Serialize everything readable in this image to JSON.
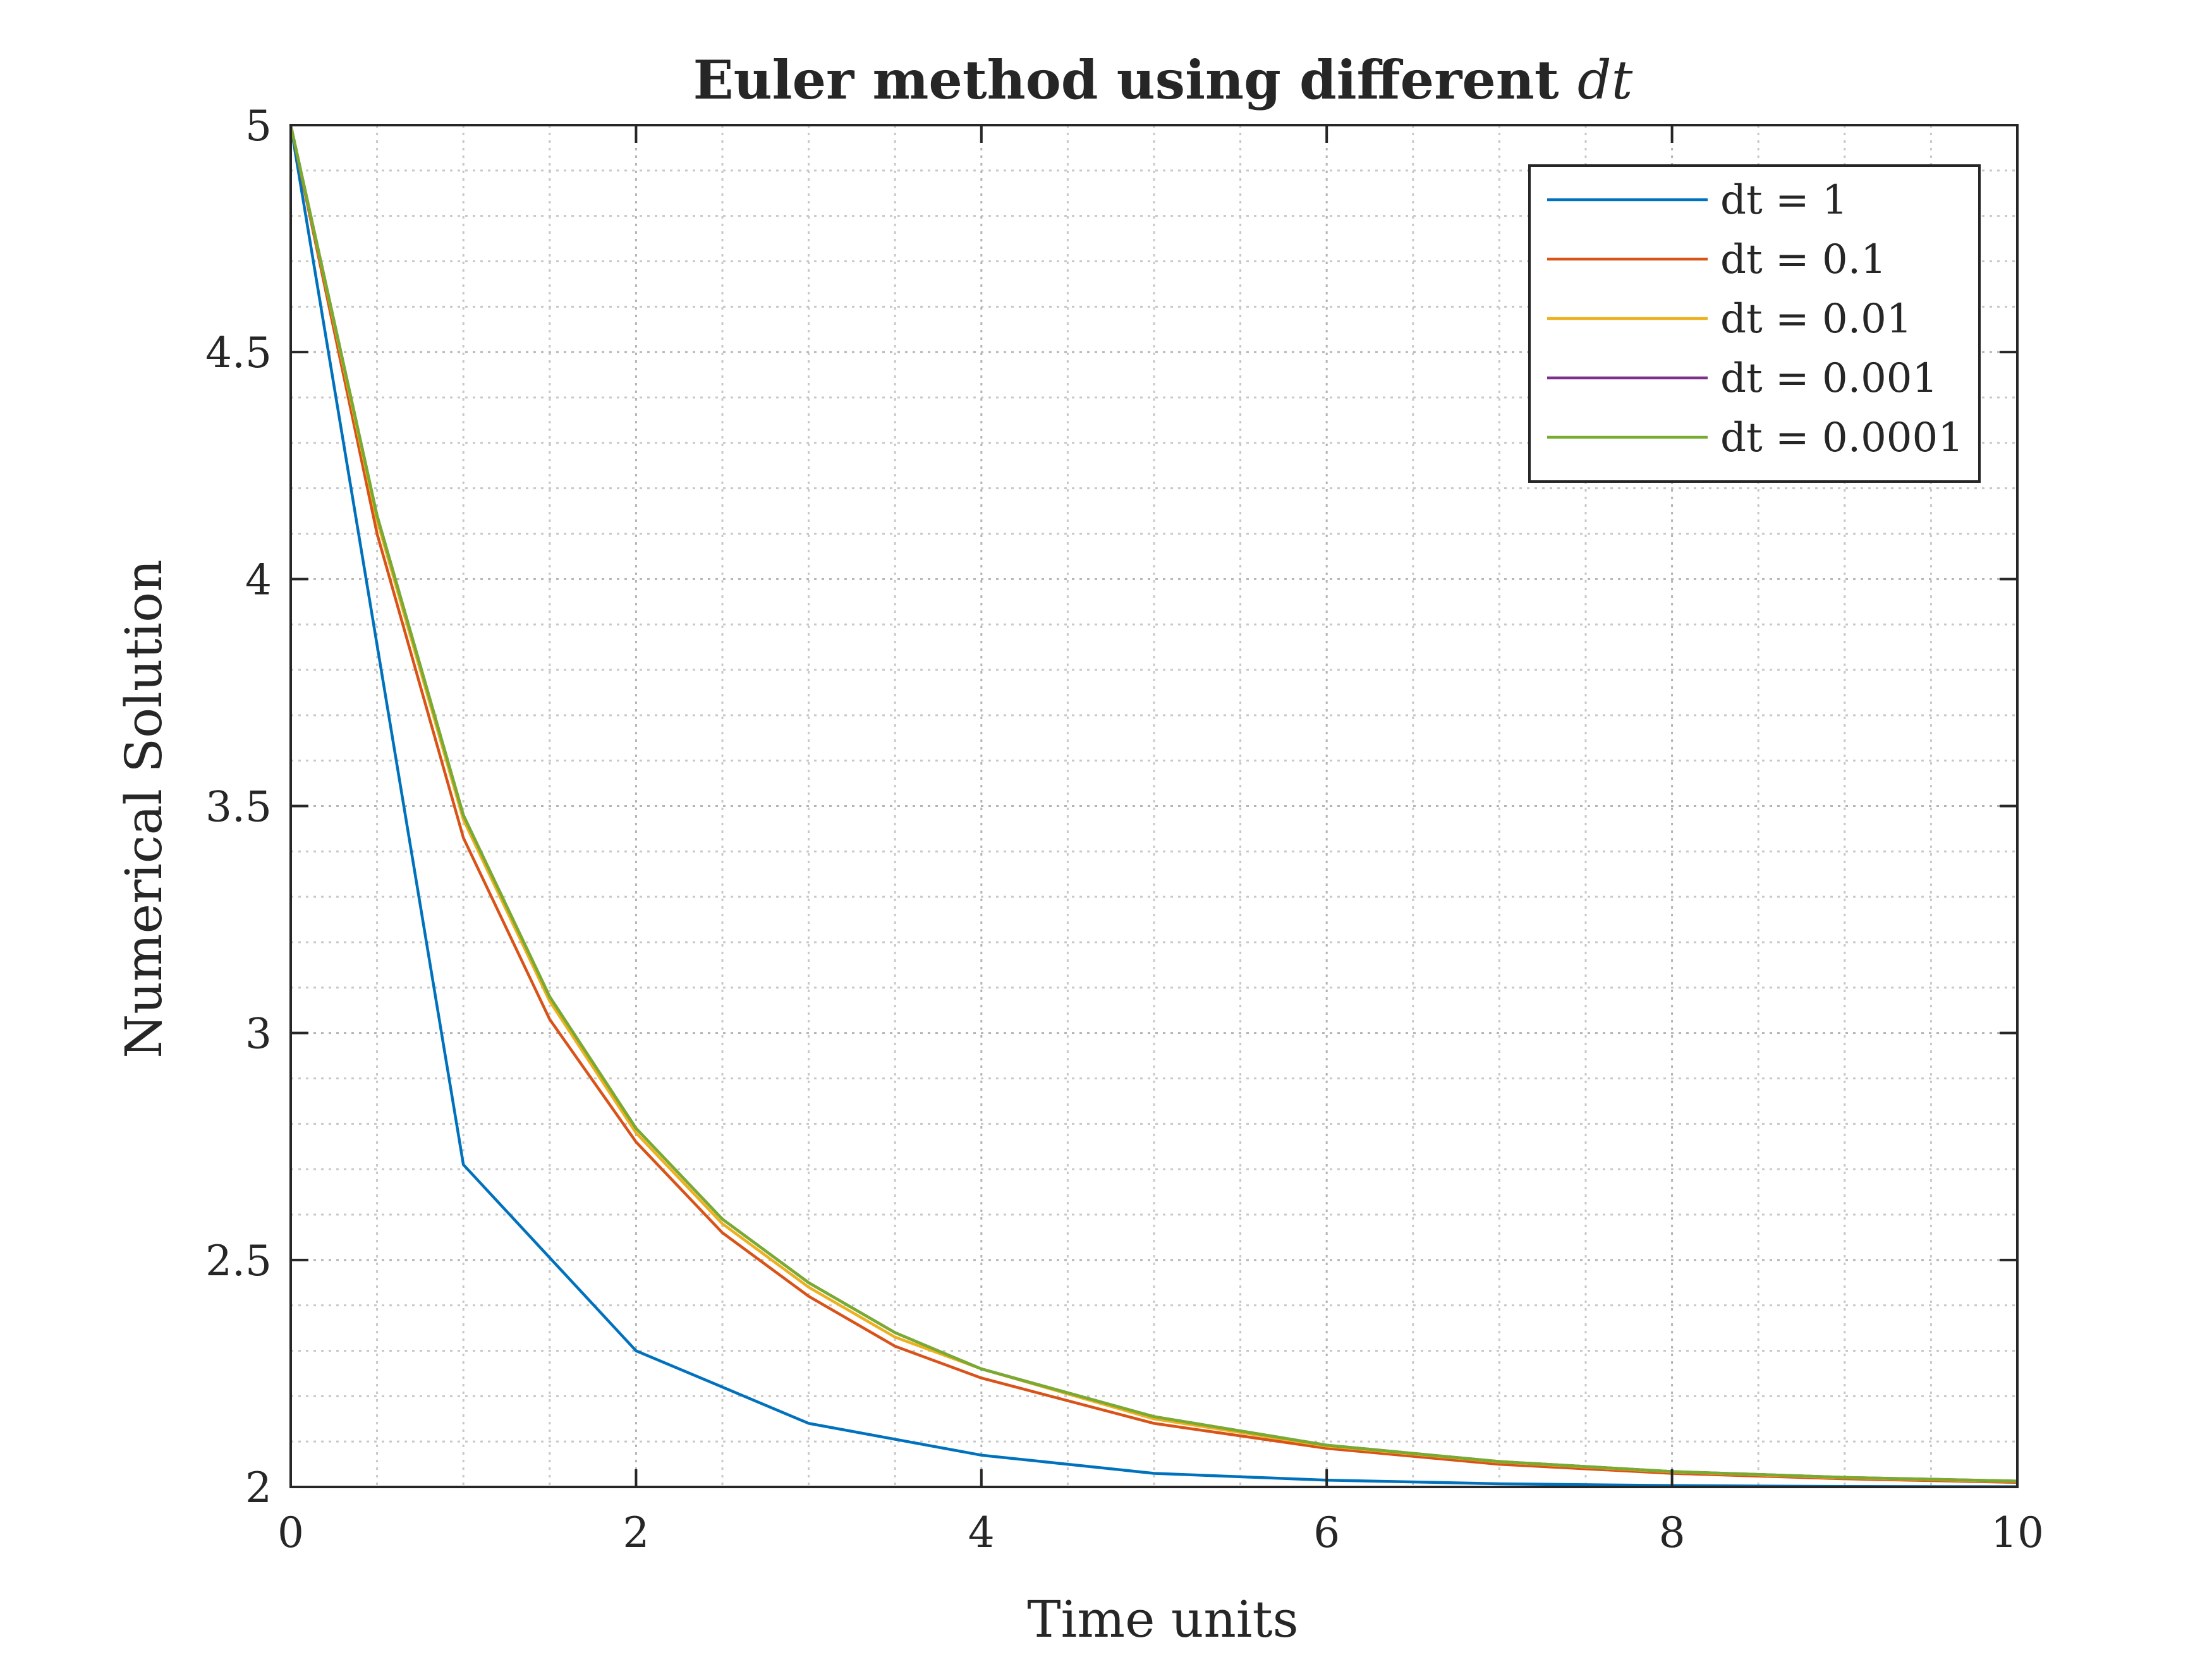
{
  "chart_data": {
    "type": "line",
    "title": "Euler method using different",
    "title_math": "dt",
    "xlabel": "Time units",
    "ylabel": "Numerical Solution",
    "xlim": [
      0,
      10
    ],
    "ylim": [
      2,
      5
    ],
    "xticks": [
      0,
      2,
      4,
      6,
      8,
      10
    ],
    "yticks": [
      2,
      2.5,
      3,
      3.5,
      4,
      4.5,
      5
    ],
    "xtick_labels": [
      "0",
      "2",
      "4",
      "6",
      "8",
      "10"
    ],
    "ytick_labels": [
      "2",
      "2.5",
      "3",
      "3.5",
      "4",
      "4.5",
      "5"
    ],
    "grid": true,
    "minor_grid": true,
    "legend_position": "top-right",
    "series": [
      {
        "name": "dt = 1",
        "color": "#0072BD",
        "x": [
          0,
          1,
          2,
          3,
          4,
          5,
          6,
          7,
          8,
          9,
          10
        ],
        "y": [
          5,
          2.71,
          2.3,
          2.14,
          2.07,
          2.03,
          2.015,
          2.007,
          2.003,
          2.001,
          2.0005
        ]
      },
      {
        "name": "dt = 0.1",
        "color": "#D95319",
        "x": [
          0,
          0.5,
          1,
          1.5,
          2,
          2.5,
          3,
          3.5,
          4,
          5,
          6,
          7,
          8,
          9,
          10
        ],
        "y": [
          5,
          4.1,
          3.43,
          3.03,
          2.76,
          2.56,
          2.42,
          2.31,
          2.24,
          2.14,
          2.085,
          2.05,
          2.03,
          2.018,
          2.01
        ]
      },
      {
        "name": "dt = 0.01",
        "color": "#EDB120",
        "x": [
          0,
          0.5,
          1,
          1.5,
          2,
          2.5,
          3,
          3.5,
          4,
          5,
          6,
          7,
          8,
          9,
          10
        ],
        "y": [
          5,
          4.13,
          3.47,
          3.07,
          2.78,
          2.58,
          2.44,
          2.33,
          2.26,
          2.15,
          2.09,
          2.055,
          2.033,
          2.02,
          2.012
        ]
      },
      {
        "name": "dt = 0.001",
        "color": "#7E2F8E",
        "x": [
          0,
          0.5,
          1,
          1.5,
          2,
          2.5,
          3,
          3.5,
          4,
          5,
          6,
          7,
          8,
          9,
          10
        ],
        "y": [
          5,
          4.14,
          3.48,
          3.08,
          2.79,
          2.59,
          2.45,
          2.34,
          2.26,
          2.155,
          2.092,
          2.056,
          2.034,
          2.021,
          2.013
        ]
      },
      {
        "name": "dt = 0.0001",
        "color": "#77AC30",
        "x": [
          0,
          0.5,
          1,
          1.5,
          2,
          2.5,
          3,
          3.5,
          4,
          5,
          6,
          7,
          8,
          9,
          10
        ],
        "y": [
          5,
          4.14,
          3.48,
          3.08,
          2.79,
          2.59,
          2.45,
          2.34,
          2.26,
          2.155,
          2.092,
          2.056,
          2.034,
          2.021,
          2.013
        ]
      }
    ]
  }
}
